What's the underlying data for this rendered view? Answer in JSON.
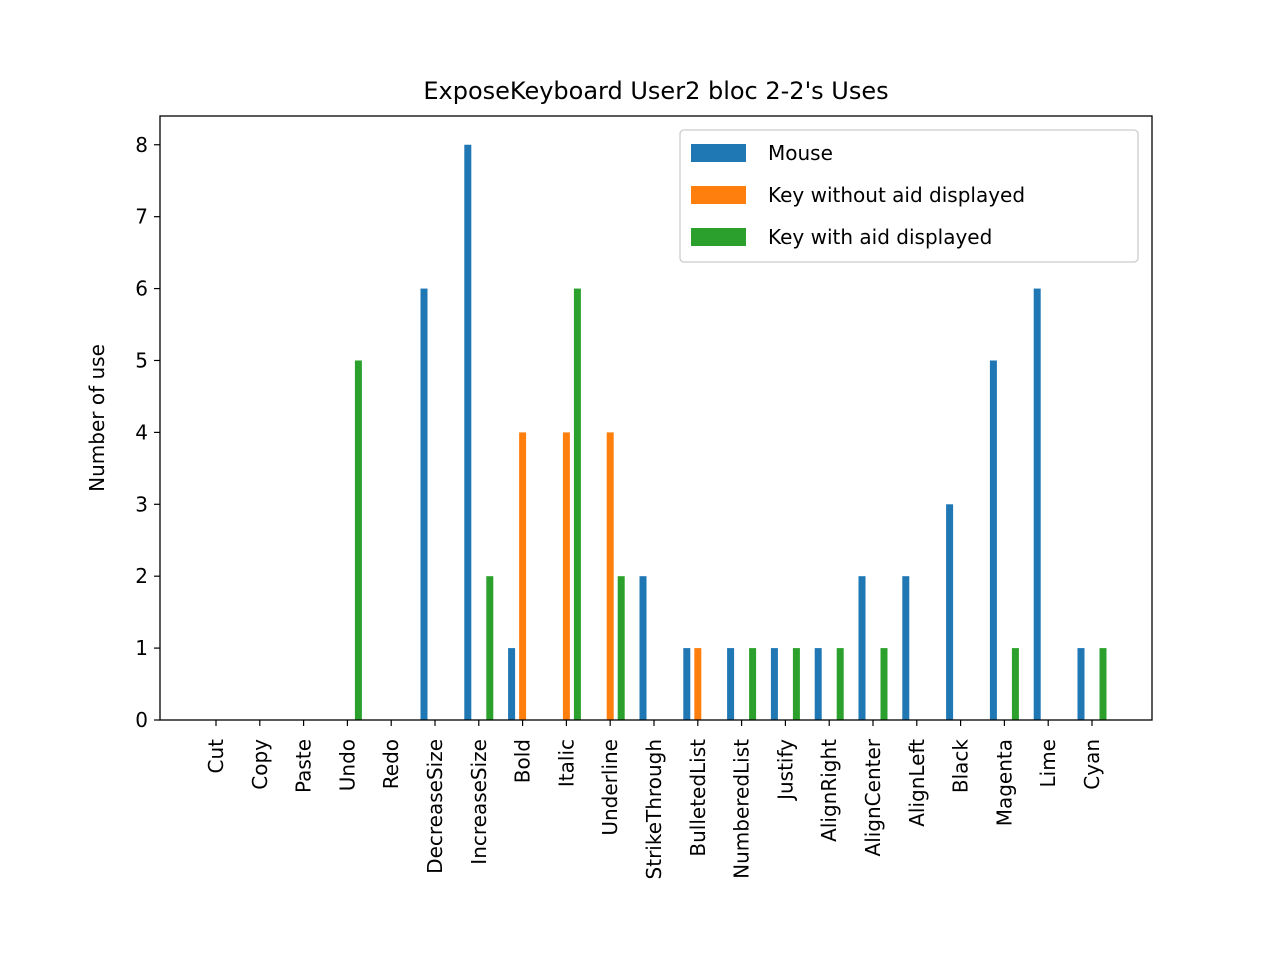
{
  "chart_data": {
    "type": "bar",
    "title": "ExposeKeyboard User2 bloc 2-2's Uses",
    "xlabel": "",
    "ylabel": "Number of use",
    "ylim": [
      0,
      8.4
    ],
    "yticks": [
      0,
      1,
      2,
      3,
      4,
      5,
      6,
      7,
      8
    ],
    "grid": false,
    "legend_position": "top-right",
    "categories": [
      "Cut",
      "Copy",
      "Paste",
      "Undo",
      "Redo",
      "DecreaseSize",
      "IncreaseSize",
      "Bold",
      "Italic",
      "Underline",
      "StrikeThrough",
      "BulletedList",
      "NumberedList",
      "Justify",
      "AlignRight",
      "AlignCenter",
      "AlignLeft",
      "Black",
      "Magenta",
      "Lime",
      "Cyan"
    ],
    "series": [
      {
        "name": "Mouse",
        "color": "#1f77b4",
        "values": [
          0,
          0,
          0,
          0,
          0,
          6,
          8,
          1,
          0,
          0,
          2,
          1,
          1,
          1,
          1,
          2,
          2,
          3,
          5,
          6,
          1
        ]
      },
      {
        "name": "Key without aid displayed",
        "color": "#ff7f0e",
        "values": [
          0,
          0,
          0,
          0,
          0,
          0,
          0,
          4,
          4,
          4,
          0,
          1,
          0,
          0,
          0,
          0,
          0,
          0,
          0,
          0,
          0
        ]
      },
      {
        "name": "Key with aid displayed",
        "color": "#2ca02c",
        "values": [
          0,
          0,
          0,
          5,
          0,
          0,
          2,
          0,
          6,
          2,
          0,
          0,
          1,
          1,
          1,
          1,
          0,
          0,
          1,
          0,
          1
        ]
      }
    ]
  }
}
